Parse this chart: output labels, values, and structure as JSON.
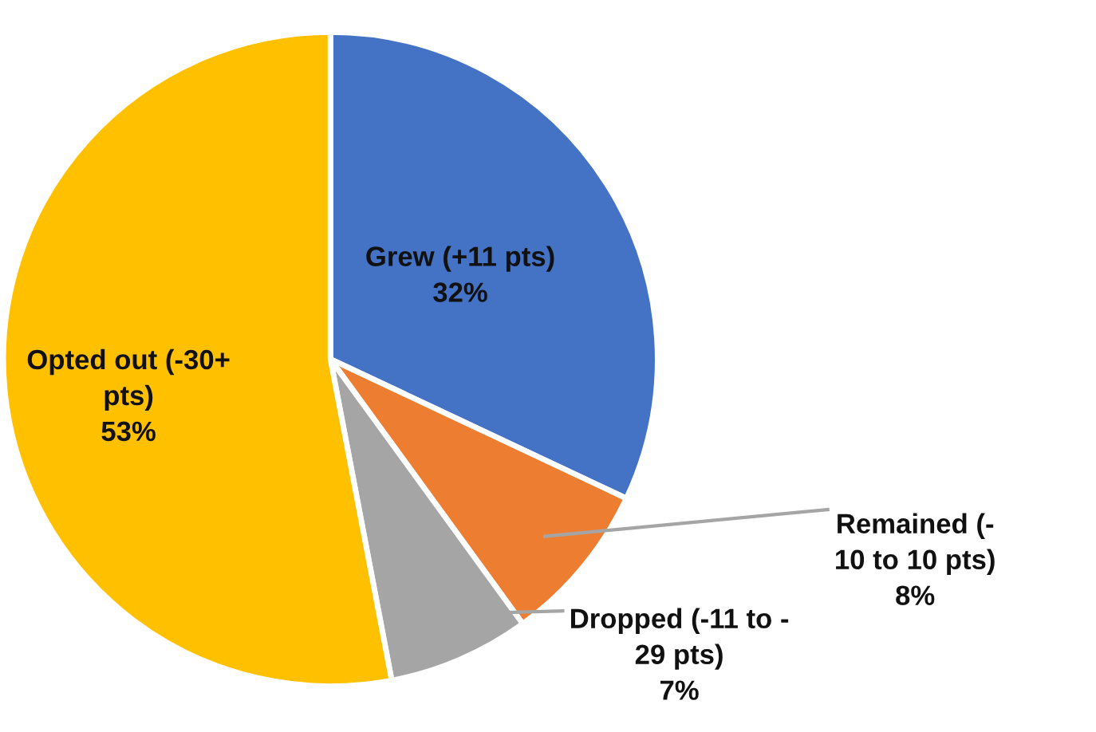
{
  "chart_data": {
    "type": "pie",
    "categories": [
      "Grew (+11 pts)",
      "Remained (-\n10 to 10 pts)",
      "Dropped (-11 to -\n29 pts)",
      "Opted out (-30+\npts)"
    ],
    "values": [
      32,
      8,
      7,
      53
    ],
    "value_labels": [
      "32%",
      "8%",
      "7%",
      "53%"
    ],
    "colors": [
      "#4472c4",
      "#ed7d31",
      "#a5a5a5",
      "#ffc000"
    ],
    "legend": false
  }
}
